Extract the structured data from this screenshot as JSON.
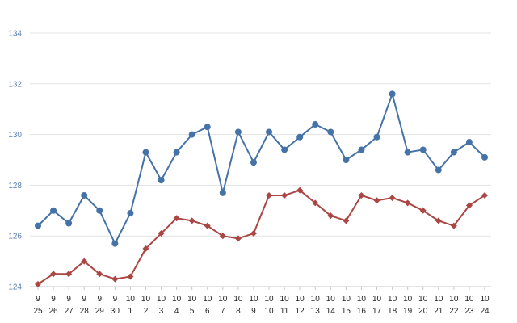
{
  "chart_data": {
    "type": "line",
    "x_month": [
      "9",
      "9",
      "9",
      "9",
      "9",
      "9",
      "10",
      "10",
      "10",
      "10",
      "10",
      "10",
      "10",
      "10",
      "10",
      "10",
      "10",
      "10",
      "10",
      "10",
      "10",
      "10",
      "10",
      "10",
      "10",
      "10",
      "10",
      "10",
      "10",
      "10"
    ],
    "x_day": [
      "25",
      "26",
      "27",
      "28",
      "29",
      "30",
      "1",
      "2",
      "3",
      "4",
      "5",
      "6",
      "7",
      "8",
      "9",
      "10",
      "11",
      "12",
      "13",
      "14",
      "15",
      "16",
      "17",
      "18",
      "19",
      "20",
      "21",
      "22",
      "23",
      "24"
    ],
    "ylim": [
      124,
      134
    ],
    "yticks": [
      "124",
      "126",
      "128",
      "130",
      "132",
      "134"
    ],
    "grid": true,
    "series": [
      {
        "color": "#4572a7",
        "marker": "circle",
        "values": [
          126.4,
          127.0,
          126.5,
          127.6,
          127.0,
          125.7,
          126.9,
          129.3,
          128.2,
          129.3,
          130.0,
          130.3,
          127.7,
          130.1,
          128.9,
          130.1,
          129.4,
          129.9,
          130.4,
          130.1,
          129.0,
          129.4,
          129.9,
          131.6,
          129.3,
          129.4,
          128.6,
          129.3,
          129.7,
          129.1
        ]
      },
      {
        "color": "#aa4643",
        "marker": "diamond",
        "values": [
          124.1,
          124.5,
          124.5,
          125.0,
          124.5,
          124.3,
          124.4,
          125.5,
          126.1,
          126.7,
          126.6,
          126.4,
          126.0,
          125.9,
          126.1,
          127.6,
          127.6,
          127.8,
          127.3,
          126.8,
          126.6,
          127.6,
          127.4,
          127.5,
          127.3,
          127.0,
          126.6,
          126.4,
          127.2,
          127.6
        ]
      }
    ]
  }
}
